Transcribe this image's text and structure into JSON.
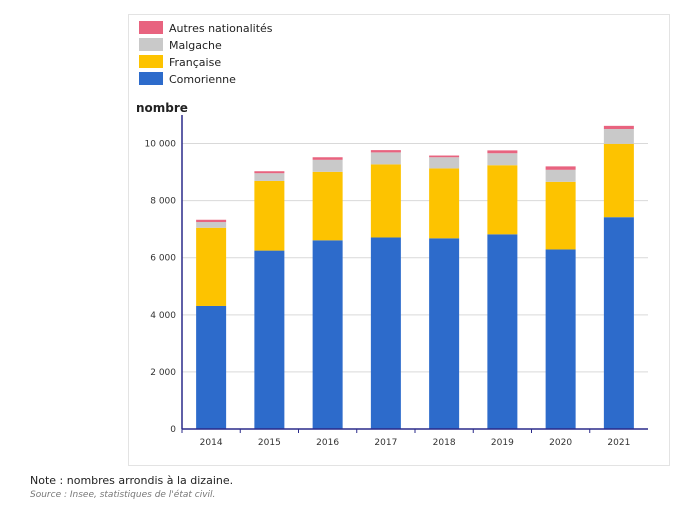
{
  "chart_data": {
    "type": "bar",
    "stacked": true,
    "categories": [
      "2014",
      "2015",
      "2016",
      "2017",
      "2018",
      "2019",
      "2020",
      "2021"
    ],
    "series": [
      {
        "name": "Comorienne",
        "color": "#2d6bcb",
        "values": [
          4310,
          6250,
          6610,
          6710,
          6680,
          6820,
          6290,
          7420
        ]
      },
      {
        "name": "Française",
        "color": "#fdc300",
        "values": [
          2740,
          2440,
          2400,
          2560,
          2450,
          2420,
          2370,
          2570
        ]
      },
      {
        "name": "Malgache",
        "color": "#c9c9c9",
        "values": [
          200,
          270,
          420,
          420,
          390,
          420,
          420,
          520
        ]
      },
      {
        "name": "Autres nationalités",
        "color": "#e8637f",
        "values": [
          80,
          70,
          90,
          80,
          60,
          100,
          120,
          110
        ]
      }
    ],
    "legend_order": [
      "Autres nationalités",
      "Malgache",
      "Française",
      "Comorienne"
    ],
    "legend_position": "top-left",
    "ylabel": "nombre",
    "xlabel": "",
    "ylim": [
      0,
      11000
    ],
    "yticks": [
      0,
      2000,
      4000,
      6000,
      8000,
      10000
    ],
    "ytick_labels": [
      "0",
      "2 000",
      "4 000",
      "6 000",
      "8 000",
      "10 000"
    ],
    "grid": true
  },
  "footer": {
    "note": "Note : nombres arrondis à la dizaine.",
    "source": "Source : Insee, statistiques de l'état civil."
  }
}
